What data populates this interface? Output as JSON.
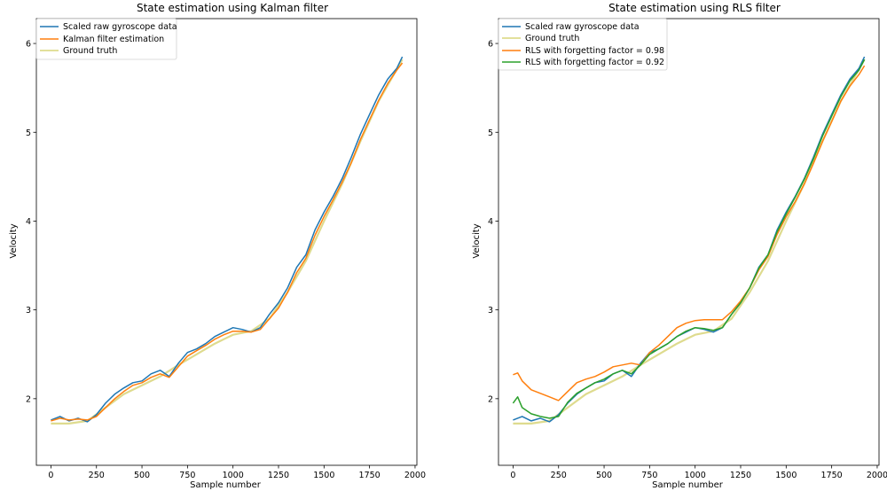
{
  "colors": {
    "gyro": "#1f77b4",
    "orange": "#ff7f0e",
    "green": "#2ca02c",
    "truth": "#d8d57a"
  },
  "chart_data": [
    {
      "type": "line",
      "title": "State estimation using Kalman filter",
      "xlabel": "Sample number",
      "ylabel": "Velocity",
      "xlim": [
        -80,
        2010
      ],
      "ylim": [
        1.25,
        6.28
      ],
      "xticks": [
        0,
        250,
        500,
        750,
        1000,
        1250,
        1500,
        1750,
        2000
      ],
      "yticks": [
        2,
        3,
        4,
        5,
        6
      ],
      "legend_position": "top-left",
      "legend": [
        "Scaled raw gyroscope data",
        "Kalman filter estimation",
        "Ground truth"
      ],
      "series": [
        {
          "name": "Scaled raw gyroscope data",
          "color_key": "gyro",
          "x": [
            0,
            50,
            100,
            150,
            200,
            250,
            300,
            350,
            400,
            450,
            500,
            550,
            600,
            650,
            700,
            750,
            800,
            850,
            900,
            950,
            1000,
            1050,
            1100,
            1150,
            1200,
            1250,
            1300,
            1350,
            1400,
            1450,
            1500,
            1550,
            1600,
            1650,
            1700,
            1750,
            1800,
            1850,
            1900,
            1930
          ],
          "y": [
            1.76,
            1.8,
            1.75,
            1.78,
            1.74,
            1.82,
            1.95,
            2.05,
            2.12,
            2.18,
            2.2,
            2.28,
            2.32,
            2.25,
            2.4,
            2.52,
            2.56,
            2.62,
            2.7,
            2.75,
            2.8,
            2.78,
            2.75,
            2.8,
            2.95,
            3.08,
            3.25,
            3.48,
            3.62,
            3.9,
            4.1,
            4.28,
            4.48,
            4.72,
            4.98,
            5.2,
            5.42,
            5.6,
            5.72,
            5.85
          ]
        },
        {
          "name": "Kalman filter estimation",
          "color_key": "orange",
          "x": [
            0,
            50,
            100,
            150,
            200,
            250,
            300,
            350,
            400,
            450,
            500,
            550,
            600,
            650,
            700,
            750,
            800,
            850,
            900,
            950,
            1000,
            1050,
            1100,
            1150,
            1200,
            1250,
            1300,
            1350,
            1400,
            1450,
            1500,
            1550,
            1600,
            1650,
            1700,
            1750,
            1800,
            1850,
            1900,
            1930
          ],
          "y": [
            1.75,
            1.78,
            1.76,
            1.77,
            1.76,
            1.8,
            1.9,
            2.0,
            2.08,
            2.15,
            2.18,
            2.24,
            2.28,
            2.24,
            2.36,
            2.48,
            2.54,
            2.6,
            2.67,
            2.72,
            2.76,
            2.76,
            2.75,
            2.78,
            2.9,
            3.02,
            3.2,
            3.42,
            3.58,
            3.84,
            4.05,
            4.24,
            4.44,
            4.66,
            4.92,
            5.14,
            5.36,
            5.55,
            5.7,
            5.78
          ]
        },
        {
          "name": "Ground truth",
          "color_key": "truth",
          "x": [
            0,
            100,
            200,
            300,
            400,
            500,
            600,
            700,
            800,
            900,
            1000,
            1100,
            1200,
            1300,
            1400,
            1500,
            1600,
            1700,
            1800,
            1930
          ],
          "y": [
            1.72,
            1.72,
            1.75,
            1.9,
            2.05,
            2.15,
            2.25,
            2.38,
            2.5,
            2.62,
            2.72,
            2.76,
            2.9,
            3.2,
            3.55,
            4.0,
            4.42,
            4.9,
            5.35,
            5.82
          ]
        }
      ]
    },
    {
      "type": "line",
      "title": "State estimation using RLS filter",
      "xlabel": "Sample number",
      "ylabel": "Velocity",
      "xlim": [
        -80,
        2010
      ],
      "ylim": [
        1.25,
        6.28
      ],
      "xticks": [
        0,
        250,
        500,
        750,
        1000,
        1250,
        1500,
        1750,
        2000
      ],
      "yticks": [
        2,
        3,
        4,
        5,
        6
      ],
      "legend_position": "top-left",
      "legend": [
        "Scaled raw gyroscope data",
        "Ground truth",
        "RLS with forgetting factor = 0.98",
        "RLS with forgetting factor = 0.92"
      ],
      "series": [
        {
          "name": "Scaled raw gyroscope data",
          "color_key": "gyro",
          "x": [
            0,
            50,
            100,
            150,
            200,
            250,
            300,
            350,
            400,
            450,
            500,
            550,
            600,
            650,
            700,
            750,
            800,
            850,
            900,
            950,
            1000,
            1050,
            1100,
            1150,
            1200,
            1250,
            1300,
            1350,
            1400,
            1450,
            1500,
            1550,
            1600,
            1650,
            1700,
            1750,
            1800,
            1850,
            1900,
            1930
          ],
          "y": [
            1.76,
            1.8,
            1.75,
            1.78,
            1.74,
            1.82,
            1.95,
            2.05,
            2.12,
            2.18,
            2.2,
            2.28,
            2.32,
            2.25,
            2.4,
            2.52,
            2.56,
            2.62,
            2.7,
            2.75,
            2.8,
            2.78,
            2.75,
            2.8,
            2.95,
            3.08,
            3.25,
            3.48,
            3.62,
            3.9,
            4.1,
            4.28,
            4.48,
            4.72,
            4.98,
            5.2,
            5.42,
            5.6,
            5.72,
            5.85
          ]
        },
        {
          "name": "Ground truth",
          "color_key": "truth",
          "x": [
            0,
            100,
            200,
            300,
            400,
            500,
            600,
            700,
            800,
            900,
            1000,
            1100,
            1200,
            1300,
            1400,
            1500,
            1600,
            1700,
            1800,
            1930
          ],
          "y": [
            1.72,
            1.72,
            1.75,
            1.9,
            2.05,
            2.15,
            2.25,
            2.38,
            2.5,
            2.62,
            2.72,
            2.76,
            2.9,
            3.2,
            3.55,
            4.0,
            4.42,
            4.9,
            5.35,
            5.82
          ]
        },
        {
          "name": "RLS with forgetting factor = 0.98",
          "color_key": "orange",
          "x": [
            0,
            25,
            50,
            100,
            150,
            200,
            250,
            300,
            350,
            400,
            450,
            500,
            550,
            600,
            650,
            700,
            750,
            800,
            850,
            900,
            950,
            1000,
            1050,
            1100,
            1150,
            1200,
            1250,
            1300,
            1350,
            1400,
            1450,
            1500,
            1550,
            1600,
            1650,
            1700,
            1750,
            1800,
            1850,
            1900,
            1930
          ],
          "y": [
            2.27,
            2.29,
            2.2,
            2.1,
            2.06,
            2.02,
            1.98,
            2.08,
            2.18,
            2.22,
            2.25,
            2.3,
            2.36,
            2.38,
            2.4,
            2.38,
            2.52,
            2.6,
            2.7,
            2.8,
            2.85,
            2.88,
            2.89,
            2.89,
            2.89,
            2.98,
            3.1,
            3.25,
            3.45,
            3.6,
            3.85,
            4.05,
            4.22,
            4.42,
            4.65,
            4.9,
            5.12,
            5.35,
            5.52,
            5.65,
            5.75
          ]
        },
        {
          "name": "RLS with forgetting factor = 0.92",
          "color_key": "green",
          "x": [
            0,
            25,
            50,
            100,
            150,
            200,
            250,
            300,
            350,
            400,
            450,
            500,
            550,
            600,
            650,
            700,
            750,
            800,
            850,
            900,
            950,
            1000,
            1050,
            1100,
            1150,
            1200,
            1250,
            1300,
            1350,
            1400,
            1450,
            1500,
            1550,
            1600,
            1650,
            1700,
            1750,
            1800,
            1850,
            1900,
            1930
          ],
          "y": [
            1.95,
            2.02,
            1.9,
            1.83,
            1.8,
            1.78,
            1.8,
            1.96,
            2.06,
            2.12,
            2.18,
            2.22,
            2.28,
            2.32,
            2.28,
            2.38,
            2.5,
            2.56,
            2.62,
            2.7,
            2.76,
            2.8,
            2.79,
            2.77,
            2.8,
            2.95,
            3.08,
            3.25,
            3.47,
            3.62,
            3.88,
            4.08,
            4.27,
            4.47,
            4.7,
            4.96,
            5.18,
            5.4,
            5.58,
            5.7,
            5.82
          ]
        }
      ]
    }
  ]
}
